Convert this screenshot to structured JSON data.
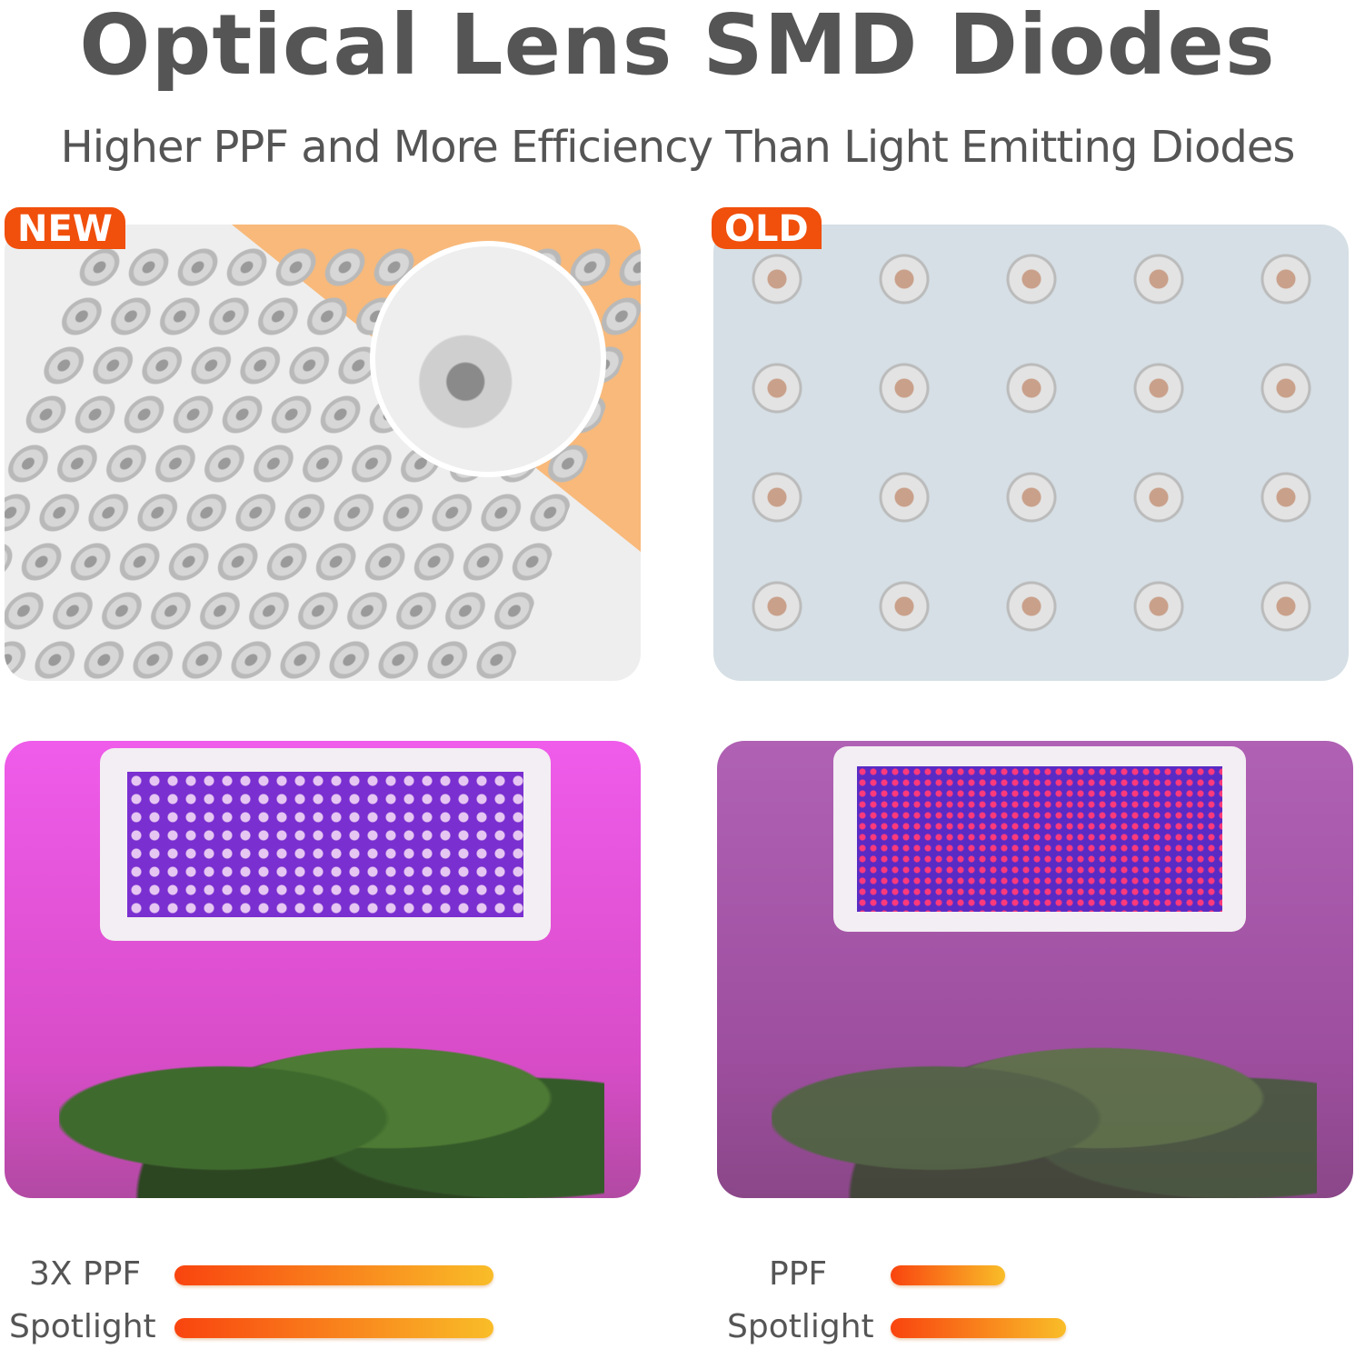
{
  "header": {
    "title": "Optical Lens SMD Diodes",
    "subtitle": "Higher PPF and  More Efficiency Than Light Emitting Diodes"
  },
  "badges": {
    "new": "NEW",
    "old": "OLD"
  },
  "colors": {
    "badge": "#f04f0c",
    "bar_start": "#f9440f",
    "bar_end": "#f9bd28",
    "text": "#555555"
  },
  "comparison": {
    "new": [
      {
        "label": "3X PPF",
        "level": 1.0
      },
      {
        "label": "Spotlight",
        "level": 1.0
      }
    ],
    "old": [
      {
        "label": "PPF",
        "level": 0.36
      },
      {
        "label": "Spotlight",
        "level": 0.55
      }
    ]
  }
}
